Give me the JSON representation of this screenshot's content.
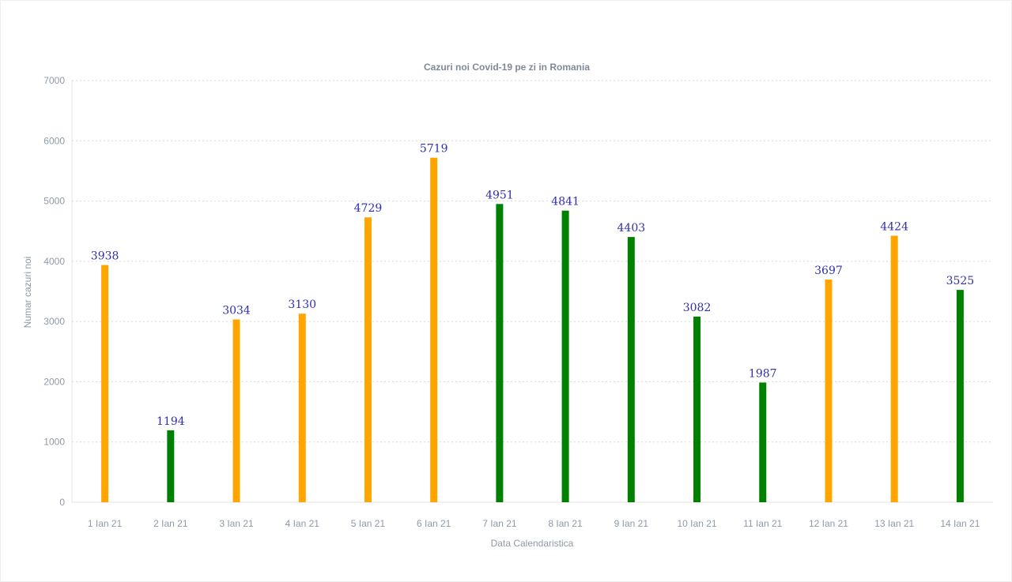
{
  "chart_data": {
    "type": "bar",
    "title": "Cazuri noi Covid-19 pe zi in Romania",
    "xlabel": "Data Calendaristica",
    "ylabel": "Numar cazuri noi",
    "ylim": [
      0,
      7000
    ],
    "yticks": [
      0,
      1000,
      2000,
      3000,
      4000,
      5000,
      6000,
      7000
    ],
    "grid": true,
    "categories": [
      "1 Ian 21",
      "2 Ian 21",
      "3 Ian 21",
      "4 Ian 21",
      "5 Ian 21",
      "6 Ian 21",
      "7 Ian 21",
      "8 Ian 21",
      "9 Ian 21",
      "10 Ian 21",
      "11 Ian 21",
      "12 Ian 21",
      "13 Ian 21",
      "14 Ian 21"
    ],
    "values": [
      3938,
      1194,
      3034,
      3130,
      4729,
      5719,
      4951,
      4841,
      4403,
      3082,
      1987,
      3697,
      4424,
      3525
    ],
    "colors": [
      "#ffa500",
      "#008000",
      "#ffa500",
      "#ffa500",
      "#ffa500",
      "#ffa500",
      "#008000",
      "#008000",
      "#008000",
      "#008000",
      "#008000",
      "#ffa500",
      "#ffa500",
      "#008000"
    ]
  }
}
